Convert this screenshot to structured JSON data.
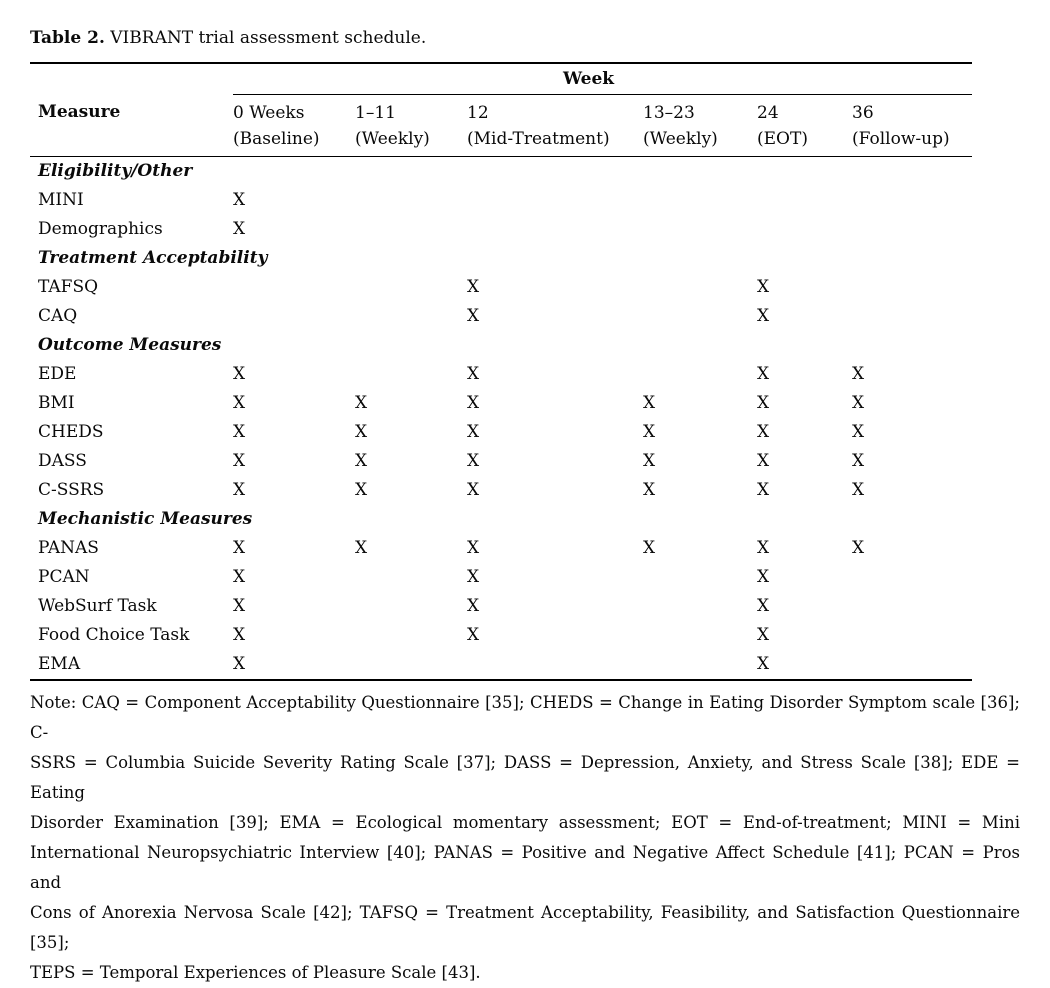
{
  "page": {
    "title_bold": "Table 2.",
    "title_rest": " VIBRANT trial assessment schedule."
  },
  "table": {
    "week_header": "Week",
    "measure_header": "Measure",
    "columns": [
      {
        "line1": "0 Weeks",
        "line2": "(Baseline)"
      },
      {
        "line1": "1–11",
        "line2": "(Weekly)"
      },
      {
        "line1": "12",
        "line2": "(Mid-Treatment)"
      },
      {
        "line1": "13–23",
        "line2": "(Weekly)"
      },
      {
        "line1": "24",
        "line2": "(EOT)"
      },
      {
        "line1": "36",
        "line2": "(Follow-up)"
      }
    ],
    "sections": [
      {
        "label": "Eligibility/Other",
        "rows": [
          {
            "measure": "MINI",
            "marks": [
              "X",
              "",
              "",
              "",
              "",
              ""
            ]
          },
          {
            "measure": "Demographics",
            "marks": [
              "X",
              "",
              "",
              "",
              "",
              ""
            ]
          }
        ]
      },
      {
        "label": "Treatment Acceptability",
        "rows": [
          {
            "measure": "TAFSQ",
            "marks": [
              "",
              "",
              "X",
              "",
              "X",
              ""
            ]
          },
          {
            "measure": "CAQ",
            "marks": [
              "",
              "",
              "X",
              "",
              "X",
              ""
            ]
          }
        ]
      },
      {
        "label": "Outcome Measures",
        "rows": [
          {
            "measure": "EDE",
            "marks": [
              "X",
              "",
              "X",
              "",
              "X",
              "X"
            ]
          },
          {
            "measure": "BMI",
            "marks": [
              "X",
              "X",
              "X",
              "X",
              "X",
              "X"
            ]
          },
          {
            "measure": "CHEDS",
            "marks": [
              "X",
              "X",
              "X",
              "X",
              "X",
              "X"
            ]
          },
          {
            "measure": "DASS",
            "marks": [
              "X",
              "X",
              "X",
              "X",
              "X",
              "X"
            ]
          },
          {
            "measure": "C-SSRS",
            "marks": [
              "X",
              "X",
              "X",
              "X",
              "X",
              "X"
            ]
          }
        ]
      },
      {
        "label": "Mechanistic Measures",
        "rows": [
          {
            "measure": "PANAS",
            "marks": [
              "X",
              "X",
              "X",
              "X",
              "X",
              "X"
            ]
          },
          {
            "measure": "PCAN",
            "marks": [
              "X",
              "",
              "X",
              "",
              "X",
              ""
            ]
          },
          {
            "measure": "WebSurf Task",
            "marks": [
              "X",
              "",
              "X",
              "",
              "X",
              ""
            ]
          },
          {
            "measure": "Food Choice Task",
            "marks": [
              "X",
              "",
              "X",
              "",
              "X",
              ""
            ]
          },
          {
            "measure": "EMA",
            "marks": [
              "X",
              "",
              "",
              "",
              "X",
              ""
            ]
          }
        ]
      }
    ]
  },
  "note_lines": [
    "Note: CAQ = Component Acceptability Questionnaire [35]; CHEDS = Change in Eating Disorder Symptom scale [36]; C-",
    "SSRS = Columbia Suicide Severity Rating Scale [37]; DASS = Depression, Anxiety, and Stress Scale [38]; EDE = Eating",
    "Disorder Examination [39]; EMA = Ecological momentary assessment; EOT = End-of-treatment; MINI = Mini",
    "International Neuropsychiatric Interview [40]; PANAS = Positive and Negative Affect Schedule [41]; PCAN = Pros and",
    "Cons of Anorexia Nervosa Scale [42]; TAFSQ = Treatment Acceptability, Feasibility, and Satisfaction Questionnaire [35];",
    "TEPS = Temporal Experiences of Pleasure Scale [43]."
  ]
}
